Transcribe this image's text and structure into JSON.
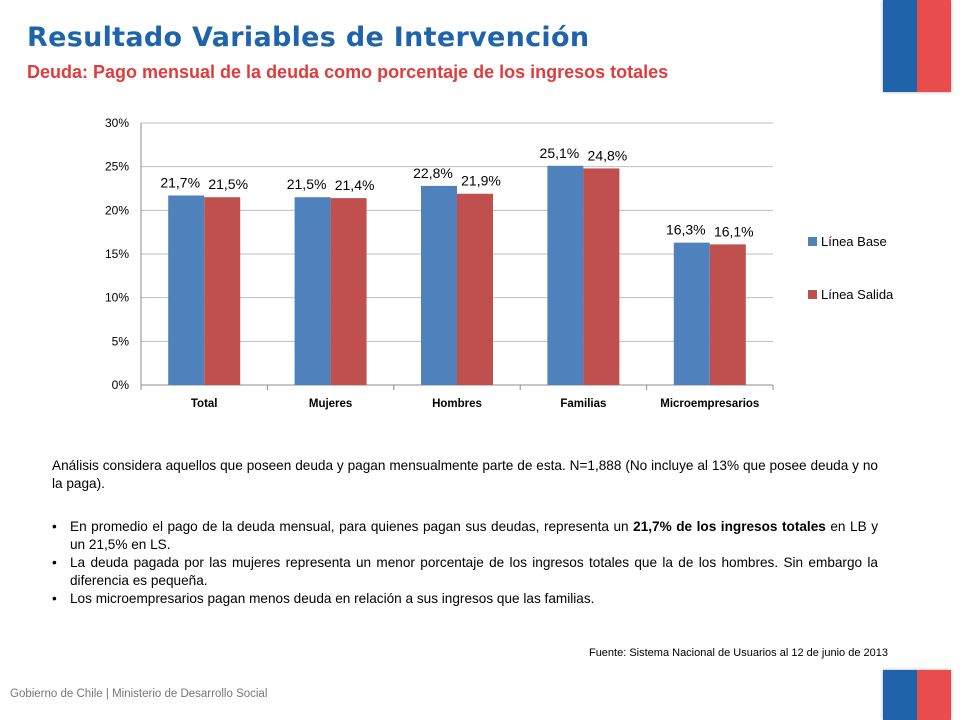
{
  "header": {
    "title": "Resultado Variables de Intervención",
    "subtitle": "Deuda: Pago mensual de la deuda como porcentaje de los ingresos totales"
  },
  "chart_data": {
    "type": "bar",
    "categories": [
      "Total",
      "Mujeres",
      "Hombres",
      "Familias",
      "Microempresarios"
    ],
    "series": [
      {
        "name": "Línea Base",
        "values": [
          21.7,
          21.5,
          22.8,
          25.1,
          16.3
        ],
        "labels": [
          "21,7%",
          "21,5%",
          "22,8%",
          "25,1%",
          "16,3%"
        ],
        "color": "#4f81bd"
      },
      {
        "name": "Línea Salida",
        "values": [
          21.5,
          21.4,
          21.9,
          24.8,
          16.1
        ],
        "labels": [
          "21,5%",
          "21,4%",
          "21,9%",
          "24,8%",
          "16,1%"
        ],
        "color": "#c0504d"
      }
    ],
    "yticks": [
      "0%",
      "5%",
      "10%",
      "15%",
      "20%",
      "25%",
      "30%"
    ],
    "ylim": [
      0,
      30
    ],
    "legend": "right",
    "grid": true
  },
  "text": {
    "analysis": "Análisis considera aquellos que poseen deuda y pagan mensualmente parte de esta. N=1,888 (No incluye al 13% que posee deuda y no la paga).",
    "bullet1_pre": "En promedio el pago de la deuda mensual, para quienes pagan sus deudas, representa un ",
    "bullet1_bold": "21,7% de los ingresos totales",
    "bullet1_post": " en LB y un 21,5% en LS.",
    "bullet2": "La deuda pagada por las mujeres representa un menor porcentaje de los ingresos totales que la  de los hombres. Sin embargo la diferencia es pequeña.",
    "bullet3": "Los microempresarios pagan menos deuda en relación a sus ingresos que las familias.",
    "source": "Fuente: Sistema Nacional de Usuarios al 12 de junio de 2013"
  },
  "footer": {
    "text": "Gobierno de Chile | Ministerio de Desarrollo Social"
  },
  "colors": {
    "title": "#1f64ab",
    "subtitle": "#e03c3c",
    "flag_blue": "#1f64ab",
    "flag_red": "#e84c4c"
  }
}
